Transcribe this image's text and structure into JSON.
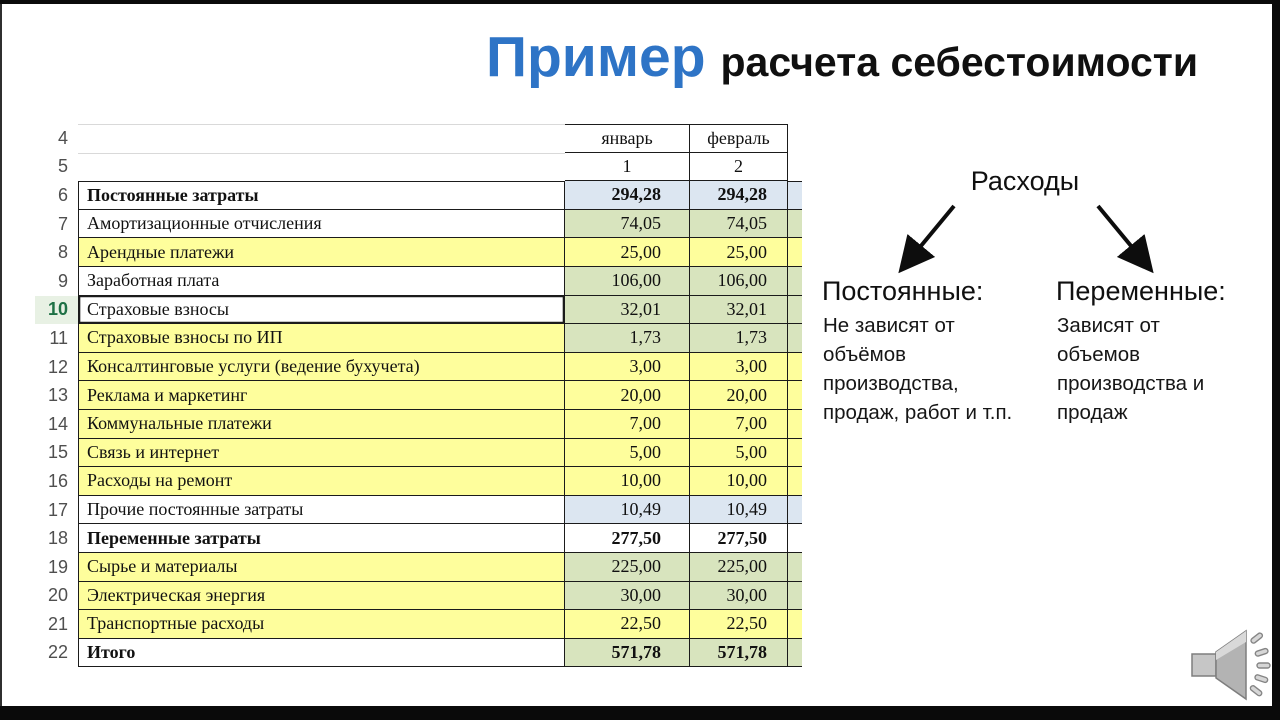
{
  "page": {
    "title_highlight": "Пример",
    "title_rest": "расчета себестоимости",
    "accent_color": "#2E74C6"
  },
  "table": {
    "palette": {
      "yellow": "#FEFE9C",
      "green": "#D8E4BE",
      "blue": "#DCE6F1",
      "white": "#FFFFFF"
    },
    "header": {
      "row4": {
        "num": "4",
        "jan": "январь",
        "feb": "февраль"
      },
      "row5": {
        "num": "5",
        "jan": "1",
        "feb": "2"
      }
    },
    "rows": [
      {
        "num": "6",
        "label": "Постоянные затраты",
        "jan": "294,28",
        "feb": "294,28",
        "bold": true,
        "label_bg": "white",
        "val_bg": "blue"
      },
      {
        "num": "7",
        "label": "Амортизационные отчисления",
        "jan": "74,05",
        "feb": "74,05",
        "label_bg": "white",
        "val_bg": "green"
      },
      {
        "num": "8",
        "label": "Арендные платежи",
        "jan": "25,00",
        "feb": "25,00",
        "label_bg": "yellow",
        "val_bg": "yellow"
      },
      {
        "num": "9",
        "label": "Заработная плата",
        "jan": "106,00",
        "feb": "106,00",
        "label_bg": "white",
        "val_bg": "green"
      },
      {
        "num": "10",
        "label": "Страховые взносы",
        "jan": "32,01",
        "feb": "32,01",
        "label_bg": "white",
        "val_bg": "green",
        "selected": true
      },
      {
        "num": "11",
        "label": "Страховые взносы по ИП",
        "jan": "1,73",
        "feb": "1,73",
        "label_bg": "yellow",
        "val_bg": "green"
      },
      {
        "num": "12",
        "label": "Консалтинговые услуги (ведение бухучета)",
        "jan": "3,00",
        "feb": "3,00",
        "label_bg": "yellow",
        "val_bg": "yellow"
      },
      {
        "num": "13",
        "label": "Реклама и маркетинг",
        "jan": "20,00",
        "feb": "20,00",
        "label_bg": "yellow",
        "val_bg": "yellow"
      },
      {
        "num": "14",
        "label": "Коммунальные платежи",
        "jan": "7,00",
        "feb": "7,00",
        "label_bg": "yellow",
        "val_bg": "yellow"
      },
      {
        "num": "15",
        "label": "Связь и интернет",
        "jan": "5,00",
        "feb": "5,00",
        "label_bg": "yellow",
        "val_bg": "yellow"
      },
      {
        "num": "16",
        "label": "Расходы на ремонт",
        "jan": "10,00",
        "feb": "10,00",
        "label_bg": "yellow",
        "val_bg": "yellow"
      },
      {
        "num": "17",
        "label": "Прочие постоянные затраты",
        "jan": "10,49",
        "feb": "10,49",
        "label_bg": "white",
        "val_bg": "blue"
      },
      {
        "num": "18",
        "label": "Переменные затраты",
        "jan": "277,50",
        "feb": "277,50",
        "bold": true,
        "label_bg": "white",
        "val_bg": "white"
      },
      {
        "num": "19",
        "label": "Сырье и материалы",
        "jan": "225,00",
        "feb": "225,00",
        "label_bg": "yellow",
        "val_bg": "green"
      },
      {
        "num": "20",
        "label": "Электрическая энергия",
        "jan": "30,00",
        "feb": "30,00",
        "label_bg": "yellow",
        "val_bg": "green"
      },
      {
        "num": "21",
        "label": "Транспортные расходы",
        "jan": "22,50",
        "feb": "22,50",
        "label_bg": "yellow",
        "val_bg": "yellow"
      },
      {
        "num": "22",
        "label": "Итого",
        "jan": "571,78",
        "feb": "571,78",
        "bold": true,
        "label_bg": "white",
        "val_bg": "green"
      }
    ]
  },
  "diagram": {
    "root_label": "Расходы",
    "left": {
      "heading": "Постоянные:",
      "lines": [
        "Не зависят от",
        "объёмов",
        "производства,",
        "продаж, работ и т.п."
      ]
    },
    "right": {
      "heading": "Переменные:",
      "lines": [
        "Зависят от",
        "объемов",
        "производства и",
        "продаж"
      ]
    }
  },
  "icons": {
    "bottom_right": "speaker-audio-icon"
  }
}
